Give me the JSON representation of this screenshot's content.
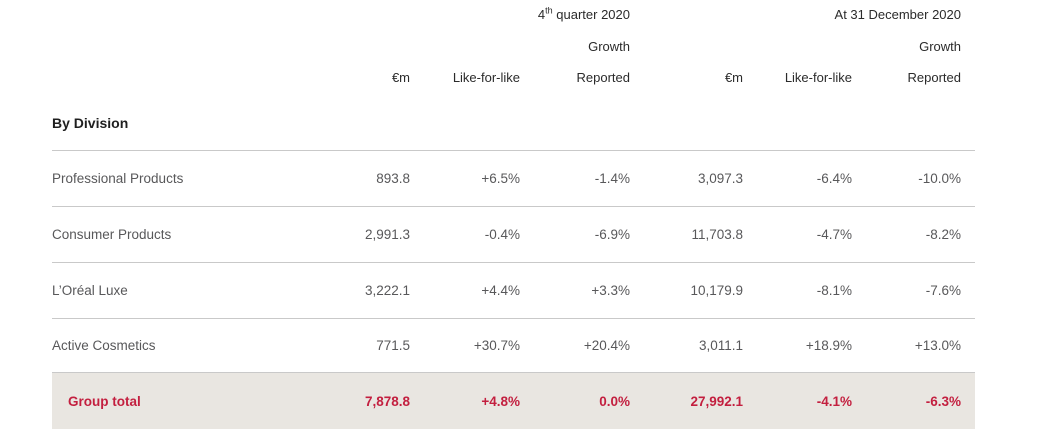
{
  "colors": {
    "accent_red": "#c31f3f",
    "total_row_bg": "#e9e6e1",
    "row_border": "#c9c9c9",
    "header_text": "#2b2b2b",
    "body_text": "#58585a"
  },
  "table": {
    "period_headers": {
      "q4": {
        "prefix": "4",
        "sup": "th",
        "rest": " quarter 2020"
      },
      "fy": "At 31 December 2020"
    },
    "growth_label": "Growth",
    "col_headers": {
      "em": "€m",
      "lfl": "Like-for-like",
      "rep": "Reported"
    },
    "section_title": "By Division",
    "rows": [
      {
        "label": "Professional Products",
        "q4_em": "893.8",
        "q4_lfl": "+6.5%",
        "q4_rep": "-1.4%",
        "fy_em": "3,097.3",
        "fy_lfl": "-6.4%",
        "fy_rep": "-10.0%"
      },
      {
        "label": "Consumer Products",
        "q4_em": "2,991.3",
        "q4_lfl": "-0.4%",
        "q4_rep": "-6.9%",
        "fy_em": "11,703.8",
        "fy_lfl": "-4.7%",
        "fy_rep": "-8.2%"
      },
      {
        "label": "L’Oréal Luxe",
        "q4_em": "3,222.1",
        "q4_lfl": "+4.4%",
        "q4_rep": "+3.3%",
        "fy_em": "10,179.9",
        "fy_lfl": "-8.1%",
        "fy_rep": "-7.6%"
      },
      {
        "label": "Active Cosmetics",
        "q4_em": "771.5",
        "q4_lfl": "+30.7%",
        "q4_rep": "+20.4%",
        "fy_em": "3,011.1",
        "fy_lfl": "+18.9%",
        "fy_rep": "+13.0%"
      }
    ],
    "total": {
      "label": "Group total",
      "q4_em": "7,878.8",
      "q4_lfl": "+4.8%",
      "q4_rep": "0.0%",
      "fy_em": "27,992.1",
      "fy_lfl": "-4.1%",
      "fy_rep": "-6.3%"
    }
  }
}
